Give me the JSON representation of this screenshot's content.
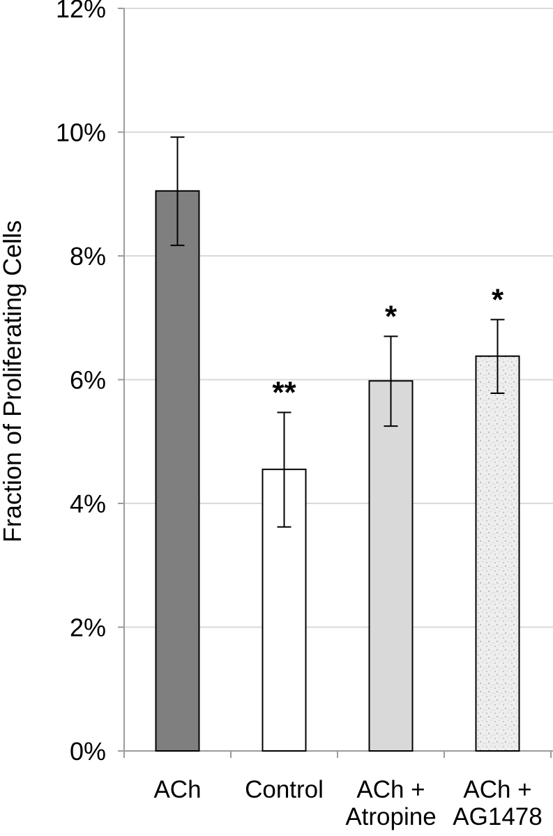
{
  "chart_data": {
    "type": "bar",
    "title": "",
    "xlabel": "",
    "ylabel": "Fraction of Proliferating Cells",
    "ylim": [
      0,
      12
    ],
    "y_ticks": [
      "0%",
      "2%",
      "4%",
      "6%",
      "8%",
      "10%",
      "12%"
    ],
    "grid": true,
    "categories": [
      [
        "ACh"
      ],
      [
        "Control"
      ],
      [
        "ACh +",
        "Atropine"
      ],
      [
        "ACh +",
        "AG1478"
      ]
    ],
    "values": [
      9.05,
      4.55,
      5.98,
      6.38
    ],
    "error_low": [
      8.17,
      3.62,
      5.25,
      5.78
    ],
    "error_high": [
      9.92,
      5.47,
      6.7,
      6.97
    ],
    "significance": [
      "",
      "**",
      "*",
      "*"
    ],
    "fills": [
      "dark-gray",
      "white",
      "light-gray",
      "speckled"
    ],
    "colors": {
      "dark-gray": "#7f7f7f",
      "white": "#ffffff",
      "light-gray": "#d9d9d9",
      "speckled": "#ececec",
      "edge": "#000000",
      "grid": "#d9d9d9",
      "axis": "#9b9b9b"
    }
  }
}
